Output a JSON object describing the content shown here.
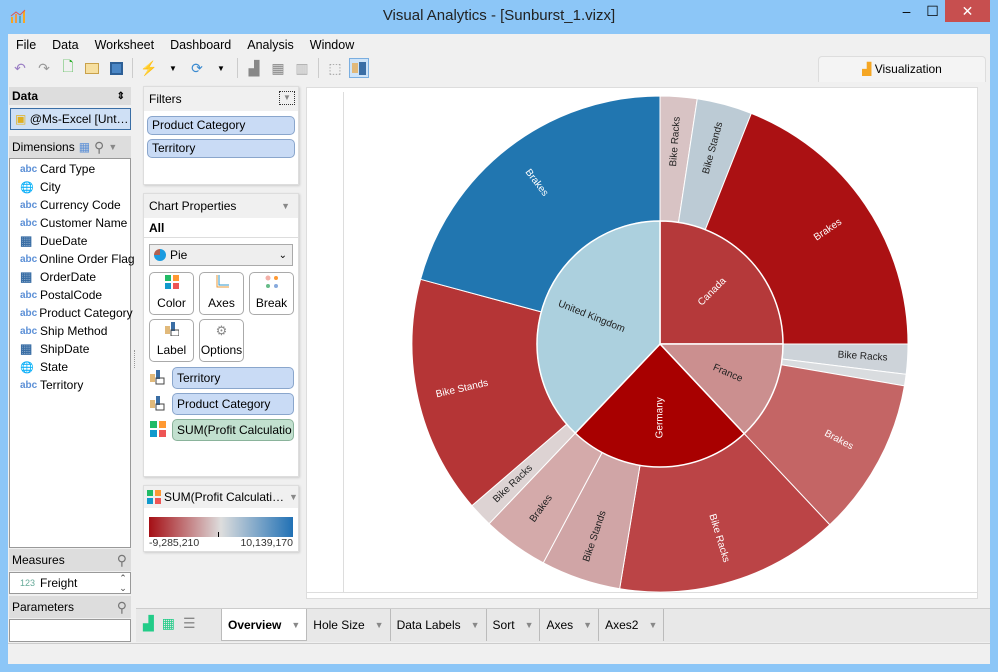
{
  "window": {
    "title": "Visual Analytics - [Sunburst_1.vizx]",
    "minimize": "‒",
    "maximize": "☐",
    "close": "✕"
  },
  "menu": [
    "File",
    "Data",
    "Worksheet",
    "Dashboard",
    "Analysis",
    "Window"
  ],
  "toolbar": {
    "icons": [
      "undo-icon",
      "redo-icon",
      "new-icon",
      "open-icon",
      "save-icon",
      "connect-icon",
      "refresh-icon",
      "add-chart-icon",
      "add-grid-icon",
      "chart-icon",
      "lasso-icon",
      "label-icon"
    ]
  },
  "viz_tab": {
    "label": "Visualization"
  },
  "data_panel": {
    "title": "Data",
    "source": "@Ms-Excel [Unt…",
    "dimensions_label": "Dimensions",
    "dimensions": [
      {
        "type": "abc",
        "label": "Card Type"
      },
      {
        "type": "globe",
        "label": "City"
      },
      {
        "type": "abc",
        "label": "Currency Code"
      },
      {
        "type": "abc",
        "label": "Customer Name"
      },
      {
        "type": "date",
        "label": "DueDate"
      },
      {
        "type": "abc",
        "label": "Online Order Flag"
      },
      {
        "type": "date",
        "label": "OrderDate"
      },
      {
        "type": "abc",
        "label": "PostalCode"
      },
      {
        "type": "abc",
        "label": "Product Category"
      },
      {
        "type": "abc",
        "label": "Ship Method"
      },
      {
        "type": "date",
        "label": "ShipDate"
      },
      {
        "type": "globe",
        "label": "State"
      },
      {
        "type": "abc",
        "label": "Territory"
      }
    ],
    "measures_label": "Measures",
    "measures": [
      {
        "type": "123",
        "label": "Freight"
      }
    ],
    "parameters_label": "Parameters"
  },
  "filters": {
    "title": "Filters",
    "items": [
      "Product Category",
      "Territory"
    ]
  },
  "chart_properties": {
    "title": "Chart Properties",
    "scope": "All",
    "chart_type": "Pie",
    "buttons": [
      "Color",
      "Axes",
      "Break",
      "Label",
      "Options"
    ],
    "shelf": [
      {
        "kind": "label",
        "text": "Territory"
      },
      {
        "kind": "label",
        "text": "Product Category"
      },
      {
        "kind": "color",
        "text": "SUM(Profit Calculatio…"
      }
    ]
  },
  "legend": {
    "title": "SUM(Profit Calculati…",
    "min": "-9,285,210",
    "max": "10,139,170",
    "colors": [
      "#a50f15",
      "#dddddd",
      "#2171b5"
    ]
  },
  "bottom_tabs": [
    "Overview",
    "Hole Size",
    "Data Labels",
    "Sort",
    "Axes",
    "Axes2"
  ],
  "chart_data": {
    "type": "sunburst",
    "value_unit": "percent of total (estimated from arc angles)",
    "rings": [
      {
        "label": "Canada",
        "value": 25.0,
        "color": "#b5393a",
        "children": [
          {
            "label": "Bike Racks",
            "value": 2.4,
            "color": "#d8c3c4"
          },
          {
            "label": "Bike Stands",
            "value": 3.6,
            "color": "#bccbd5"
          },
          {
            "label": "Brakes",
            "value": 19.0,
            "color": "#ab1113"
          }
        ]
      },
      {
        "label": "France",
        "value": 13.0,
        "color": "#cb8f8f",
        "children": [
          {
            "label": "Bike Racks",
            "value": 1.95,
            "color": "#cdd3d9"
          },
          {
            "label": "",
            "value": 0.75,
            "color": "#d9dcdf"
          },
          {
            "label": "Brakes",
            "value": 10.3,
            "color": "#c46565"
          }
        ]
      },
      {
        "label": "Germany",
        "value": 24.1,
        "color": "#a80000",
        "children": [
          {
            "label": "Bike Racks",
            "value": 14.6,
            "color": "#bb4446"
          },
          {
            "label": "Bike Stands",
            "value": 5.2,
            "color": "#d0a5a6"
          },
          {
            "label": "Brakes",
            "value": 4.3,
            "color": "#d4aaaa"
          }
        ]
      },
      {
        "label": "United Kingdom",
        "value": 37.9,
        "color": "#acd0de",
        "children": [
          {
            "label": "Bike Racks",
            "value": 1.6,
            "color": "#ddd3d3"
          },
          {
            "label": "Bike Stands",
            "value": 15.5,
            "color": "#b53536"
          },
          {
            "label": "Brakes",
            "value": 20.8,
            "color": "#2176b0"
          }
        ]
      }
    ]
  }
}
